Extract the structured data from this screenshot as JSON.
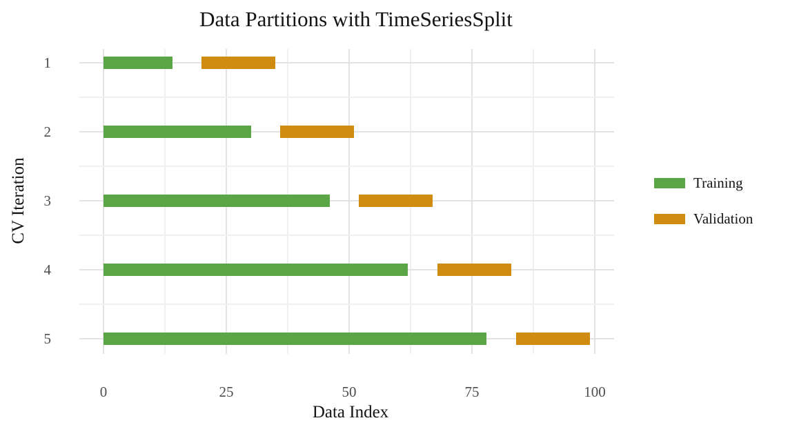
{
  "chart_data": {
    "type": "bar",
    "subtype": "horizontal-range-bars (time-series cross-validation gantt)",
    "title": "Data Partitions with TimeSeriesSplit",
    "xlabel": "Data Index",
    "ylabel": "CV Iteration",
    "xlim": [
      -4.95,
      103.95
    ],
    "x_major_ticks": [
      0,
      25,
      50,
      75,
      100
    ],
    "x_minor_gridlines": [
      12.5,
      37.5,
      62.5,
      87.5
    ],
    "y_categories": [
      "1",
      "2",
      "3",
      "4",
      "5"
    ],
    "y_minor_gridlines": [
      1.5,
      2.5,
      3.5,
      4.5
    ],
    "grid": "on",
    "legend_position": "right",
    "legend": [
      {
        "label": "Training",
        "color": "#5aa545"
      },
      {
        "label": "Validation",
        "color": "#cf8c10"
      }
    ],
    "series": [
      {
        "name": "Training",
        "color": "#5aa545",
        "ranges": [
          {
            "y": 1,
            "start": 0,
            "end": 14
          },
          {
            "y": 2,
            "start": 0,
            "end": 30
          },
          {
            "y": 3,
            "start": 0,
            "end": 46
          },
          {
            "y": 4,
            "start": 0,
            "end": 62
          },
          {
            "y": 5,
            "start": 0,
            "end": 78
          }
        ]
      },
      {
        "name": "Validation",
        "color": "#cf8c10",
        "ranges": [
          {
            "y": 1,
            "start": 20,
            "end": 35
          },
          {
            "y": 2,
            "start": 36,
            "end": 51
          },
          {
            "y": 3,
            "start": 52,
            "end": 67
          },
          {
            "y": 4,
            "start": 68,
            "end": 83
          },
          {
            "y": 5,
            "start": 84,
            "end": 99
          }
        ]
      }
    ]
  }
}
